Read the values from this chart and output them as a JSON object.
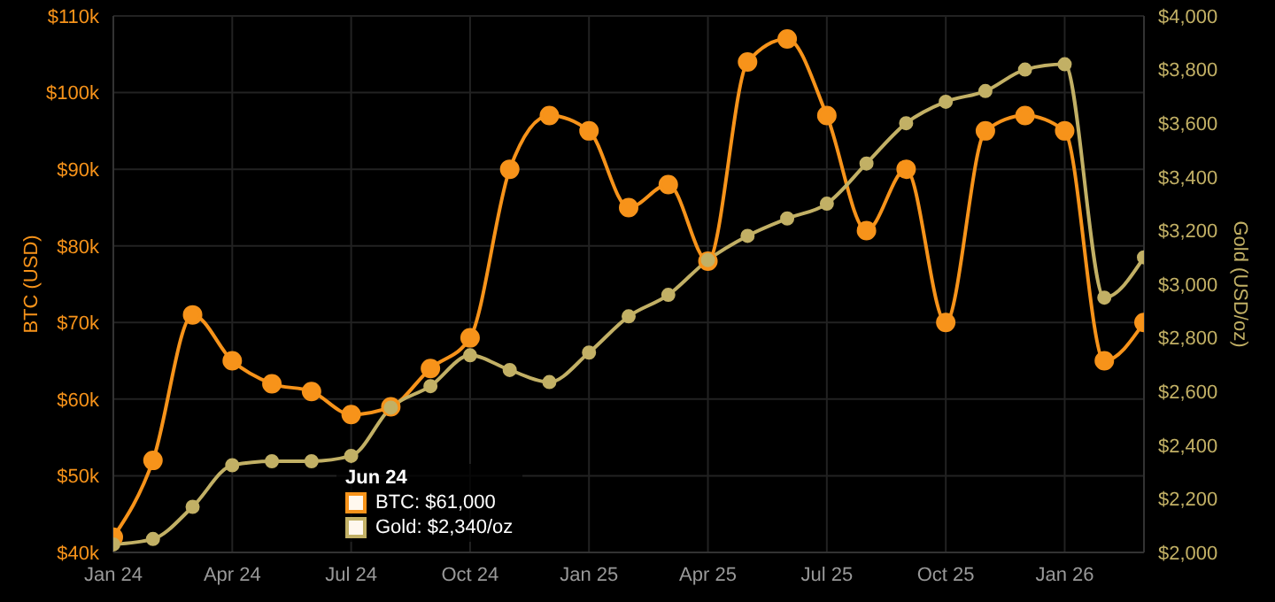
{
  "chart_data": {
    "type": "line",
    "ylabel": "BTC (USD)",
    "y2label": "Gold (USD/oz)",
    "x": [
      "2024-01",
      "2024-02",
      "2024-03",
      "2024-04",
      "2024-05",
      "2024-06",
      "2024-07",
      "2024-08",
      "2024-09",
      "2024-10",
      "2024-11",
      "2024-12",
      "2025-01",
      "2025-02",
      "2025-03",
      "2025-04",
      "2025-05",
      "2025-06",
      "2025-07",
      "2025-08",
      "2025-09",
      "2025-10",
      "2025-11",
      "2025-12",
      "2026-01",
      "2026-02",
      "2026-03"
    ],
    "series": [
      {
        "color": "#f7931a",
        "values": [
          42000,
          52000,
          71000,
          65000,
          62000,
          61000,
          58000,
          59000,
          64000,
          68000,
          90000,
          97000,
          95000,
          85000,
          88000,
          78000,
          104000,
          107000,
          97000,
          82000,
          90000,
          70000,
          95000,
          97000,
          95000,
          65000,
          70000
        ]
      },
      {
        "color": "#c2b065",
        "axis": "y2",
        "values": [
          2030,
          2050,
          2170,
          2325,
          2340,
          2340,
          2360,
          2540,
          2620,
          2735,
          2680,
          2635,
          2745,
          2880,
          2960,
          3090,
          3180,
          3245,
          3300,
          3450,
          3600,
          3680,
          3720,
          3800,
          3820,
          2950,
          3100
        ]
      }
    ],
    "xlim": [
      "2024-01",
      "2026-03"
    ],
    "xticks": [
      {
        "value": "2024-01",
        "label": "Jan 24"
      },
      {
        "value": "2024-04",
        "label": "Apr 24"
      },
      {
        "value": "2024-07",
        "label": "Jul 24"
      },
      {
        "value": "2024-10",
        "label": "Oct 24"
      },
      {
        "value": "2025-01",
        "label": "Jan 25"
      },
      {
        "value": "2025-04",
        "label": "Apr 25"
      },
      {
        "value": "2025-07",
        "label": "Jul 25"
      },
      {
        "value": "2025-10",
        "label": "Oct 25"
      },
      {
        "value": "2026-01",
        "label": "Jan 26"
      }
    ],
    "ylim": [
      40000,
      110000
    ],
    "yticks": [
      {
        "value": 40000,
        "label": "$40k"
      },
      {
        "value": 50000,
        "label": "$50k"
      },
      {
        "value": 60000,
        "label": "$60k"
      },
      {
        "value": 70000,
        "label": "$70k"
      },
      {
        "value": 80000,
        "label": "$80k"
      },
      {
        "value": 90000,
        "label": "$90k"
      },
      {
        "value": 100000,
        "label": "$100k"
      },
      {
        "value": 110000,
        "label": "$110k"
      }
    ],
    "y2lim": [
      2000,
      4000
    ],
    "y2ticks": [
      {
        "value": 2000,
        "label": "$2,000"
      },
      {
        "value": 2200,
        "label": "$2,200"
      },
      {
        "value": 2400,
        "label": "$2,400"
      },
      {
        "value": 2600,
        "label": "$2,600"
      },
      {
        "value": 2800,
        "label": "$2,800"
      },
      {
        "value": 3000,
        "label": "$3,000"
      },
      {
        "value": 3200,
        "label": "$3,200"
      },
      {
        "value": 3400,
        "label": "$3,400"
      },
      {
        "value": 3600,
        "label": "$3,600"
      },
      {
        "value": 3800,
        "label": "$3,800"
      },
      {
        "value": 4000,
        "label": "$4,000"
      }
    ],
    "grid": true,
    "marker": "circle",
    "line_style": "solid",
    "annotations": [
      "Jun 24",
      "BTC: $61,000",
      "Gold: $2,340/oz"
    ]
  }
}
